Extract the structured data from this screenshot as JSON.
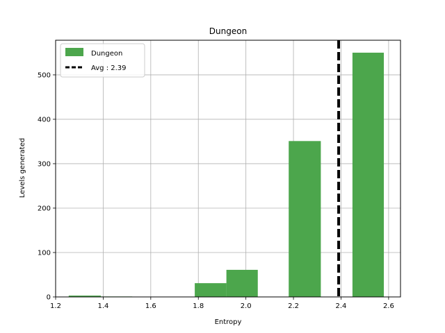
{
  "chart_data": {
    "type": "bar",
    "title": "Dungeon",
    "xlabel": "Entropy",
    "ylabel": "Levels generated",
    "xlim": [
      1.2,
      2.65
    ],
    "ylim": [
      0,
      578
    ],
    "xticks": [
      1.2,
      1.4,
      1.6,
      1.8,
      2.0,
      2.2,
      2.4,
      2.6
    ],
    "xtick_labels": [
      "1.2",
      "1.4",
      "1.6",
      "1.8",
      "2.0",
      "2.2",
      "2.4",
      "2.6"
    ],
    "yticks": [
      0,
      100,
      200,
      300,
      400,
      500
    ],
    "ytick_labels": [
      "0",
      "100",
      "200",
      "300",
      "400",
      "500"
    ],
    "grid": true,
    "legend_position": "top-left",
    "bar_color": "#4ca64c",
    "series": [
      {
        "name": "Dungeon",
        "bins": [
          {
            "x0": 1.255,
            "x1": 1.39,
            "value": 3
          },
          {
            "x0": 1.39,
            "x1": 1.522,
            "value": 1
          },
          {
            "x0": 1.785,
            "x1": 1.918,
            "value": 31
          },
          {
            "x0": 1.918,
            "x1": 2.05,
            "value": 61
          },
          {
            "x0": 2.18,
            "x1": 2.315,
            "value": 351
          },
          {
            "x0": 2.448,
            "x1": 2.58,
            "value": 550
          }
        ]
      }
    ],
    "avg_line": {
      "x": 2.39,
      "label": "Avg : 2.39"
    }
  }
}
